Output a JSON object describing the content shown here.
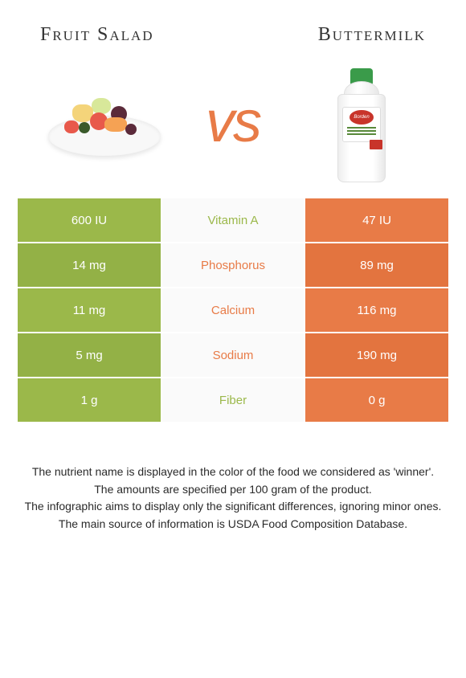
{
  "colors": {
    "left_bar": "#9bb84a",
    "right_bar": "#e87b47",
    "row_alt_left": "#93b146",
    "row_alt_right": "#e3743f",
    "mid_bg": "#fafafa"
  },
  "titles": {
    "left": "Fruit Salad",
    "right": "Buttermilk"
  },
  "vs_text": "vs",
  "nutrients": [
    {
      "name": "Vitamin A",
      "left": "600 IU",
      "right": "47 IU",
      "winner": "left"
    },
    {
      "name": "Phosphorus",
      "left": "14 mg",
      "right": "89 mg",
      "winner": "right"
    },
    {
      "name": "Calcium",
      "left": "11 mg",
      "right": "116 mg",
      "winner": "right"
    },
    {
      "name": "Sodium",
      "left": "5 mg",
      "right": "190 mg",
      "winner": "right"
    },
    {
      "name": "Fiber",
      "left": "1 g",
      "right": "0 g",
      "winner": "left"
    }
  ],
  "footer": {
    "line1": "The nutrient name is displayed in the color of the food we considered as 'winner'.",
    "line2": "The amounts are specified per 100 gram of the product.",
    "line3": "The infographic aims to display only the significant differences, ignoring minor ones.",
    "line4": "The main source of information is USDA Food Composition Database."
  },
  "bottle_brand": "Borden"
}
